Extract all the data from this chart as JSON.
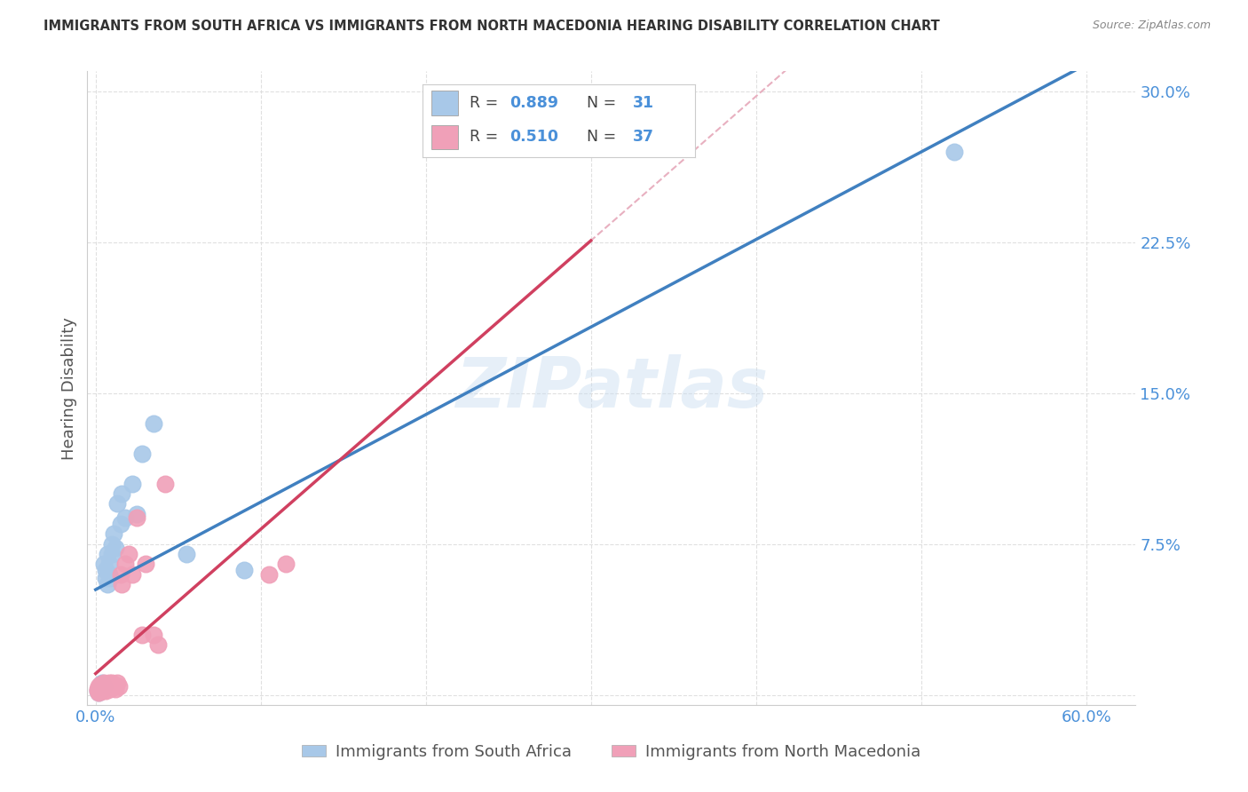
{
  "title": "IMMIGRANTS FROM SOUTH AFRICA VS IMMIGRANTS FROM NORTH MACEDONIA HEARING DISABILITY CORRELATION CHART",
  "source": "Source: ZipAtlas.com",
  "ylabel": "Hearing Disability",
  "xlim": [
    -0.005,
    0.63
  ],
  "ylim": [
    -0.005,
    0.31
  ],
  "x_ticks": [
    0.0,
    0.1,
    0.2,
    0.3,
    0.4,
    0.5,
    0.6
  ],
  "x_tick_labels": [
    "0.0%",
    "",
    "",
    "",
    "",
    "",
    "60.0%"
  ],
  "y_ticks": [
    0.0,
    0.075,
    0.15,
    0.225,
    0.3
  ],
  "y_tick_labels": [
    "",
    "7.5%",
    "15.0%",
    "22.5%",
    "30.0%"
  ],
  "watermark": "ZIPatlas",
  "blue_R": 0.889,
  "blue_N": 31,
  "pink_R": 0.51,
  "pink_N": 37,
  "blue_color": "#a8c8e8",
  "pink_color": "#f0a0b8",
  "blue_line_color": "#4080c0",
  "pink_line_color": "#d04060",
  "pink_dash_color": "#e8b0c0",
  "blue_scatter_x": [
    0.001,
    0.002,
    0.002,
    0.003,
    0.003,
    0.004,
    0.004,
    0.005,
    0.005,
    0.006,
    0.006,
    0.007,
    0.007,
    0.008,
    0.008,
    0.009,
    0.01,
    0.01,
    0.011,
    0.012,
    0.013,
    0.015,
    0.016,
    0.018,
    0.022,
    0.025,
    0.028,
    0.035,
    0.055,
    0.09,
    0.52
  ],
  "blue_scatter_y": [
    0.002,
    0.001,
    0.003,
    0.004,
    0.005,
    0.003,
    0.006,
    0.004,
    0.065,
    0.058,
    0.062,
    0.055,
    0.07,
    0.06,
    0.065,
    0.058,
    0.075,
    0.07,
    0.08,
    0.073,
    0.095,
    0.085,
    0.1,
    0.088,
    0.105,
    0.09,
    0.12,
    0.135,
    0.07,
    0.062,
    0.27
  ],
  "pink_scatter_x": [
    0.001,
    0.001,
    0.002,
    0.002,
    0.003,
    0.003,
    0.004,
    0.004,
    0.005,
    0.005,
    0.006,
    0.006,
    0.007,
    0.007,
    0.008,
    0.008,
    0.009,
    0.009,
    0.01,
    0.01,
    0.011,
    0.012,
    0.013,
    0.014,
    0.015,
    0.016,
    0.018,
    0.02,
    0.022,
    0.025,
    0.028,
    0.03,
    0.035,
    0.038,
    0.042,
    0.105,
    0.115
  ],
  "pink_scatter_y": [
    0.002,
    0.003,
    0.001,
    0.004,
    0.003,
    0.005,
    0.002,
    0.004,
    0.003,
    0.006,
    0.004,
    0.002,
    0.005,
    0.003,
    0.004,
    0.006,
    0.003,
    0.005,
    0.004,
    0.006,
    0.005,
    0.003,
    0.006,
    0.004,
    0.06,
    0.055,
    0.065,
    0.07,
    0.06,
    0.088,
    0.03,
    0.065,
    0.03,
    0.025,
    0.105,
    0.06,
    0.065
  ],
  "background_color": "#ffffff",
  "grid_color": "#dddddd",
  "legend_label_blue": "Immigrants from South Africa",
  "legend_label_pink": "Immigrants from North Macedonia"
}
